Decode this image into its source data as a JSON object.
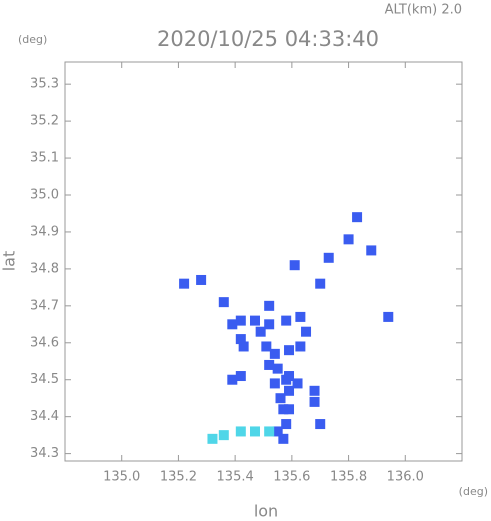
{
  "chart_data": {
    "type": "scatter",
    "title": "2020/10/25 04:33:40",
    "subtitle": "ALT(km) 2.0",
    "y_unit": "(deg)",
    "x_unit": "(deg)",
    "xlabel": "lon",
    "ylabel": "lat",
    "xlim": [
      134.8,
      136.2
    ],
    "ylim": [
      34.28,
      35.36
    ],
    "xticks": [
      {
        "value": 135.0,
        "label": "135.0"
      },
      135.2,
      135.4,
      135.6,
      135.8,
      {
        "value": 136.0,
        "label": "136.0"
      }
    ],
    "yticks": [
      34.3,
      34.4,
      34.5,
      34.6,
      34.7,
      34.8,
      34.9,
      {
        "value": 35.0,
        "label": "35.0"
      },
      35.1,
      35.2,
      35.3
    ],
    "series": [
      {
        "color": "#3a5cf0",
        "x": [
          135.83,
          135.8,
          135.88,
          135.73,
          135.61,
          135.7,
          135.28,
          135.22,
          135.36,
          135.52,
          135.94,
          135.39,
          135.42,
          135.47,
          135.49,
          135.52,
          135.58,
          135.63,
          135.65,
          135.42,
          135.51,
          135.54,
          135.59,
          135.63,
          135.43,
          135.55,
          135.58,
          135.59,
          135.62,
          135.54,
          135.56,
          135.57,
          135.59,
          135.52,
          135.68,
          135.68,
          135.58,
          135.55,
          135.57,
          135.59,
          135.42,
          135.39,
          135.7
        ],
        "y": [
          34.94,
          34.88,
          34.85,
          34.83,
          34.81,
          34.76,
          34.77,
          34.76,
          34.71,
          34.7,
          34.67,
          34.65,
          34.66,
          34.66,
          34.63,
          34.65,
          34.66,
          34.67,
          34.63,
          34.61,
          34.59,
          34.57,
          34.58,
          34.59,
          34.59,
          34.53,
          34.5,
          34.47,
          34.49,
          34.49,
          34.45,
          34.42,
          34.51,
          34.54,
          34.47,
          34.44,
          34.38,
          34.36,
          34.34,
          34.42,
          34.51,
          34.5,
          34.38
        ]
      },
      {
        "color": "#4fd6e8",
        "x": [
          135.32,
          135.36,
          135.42,
          135.47,
          135.52
        ],
        "y": [
          34.34,
          34.35,
          34.36,
          34.36,
          34.36
        ]
      }
    ]
  }
}
